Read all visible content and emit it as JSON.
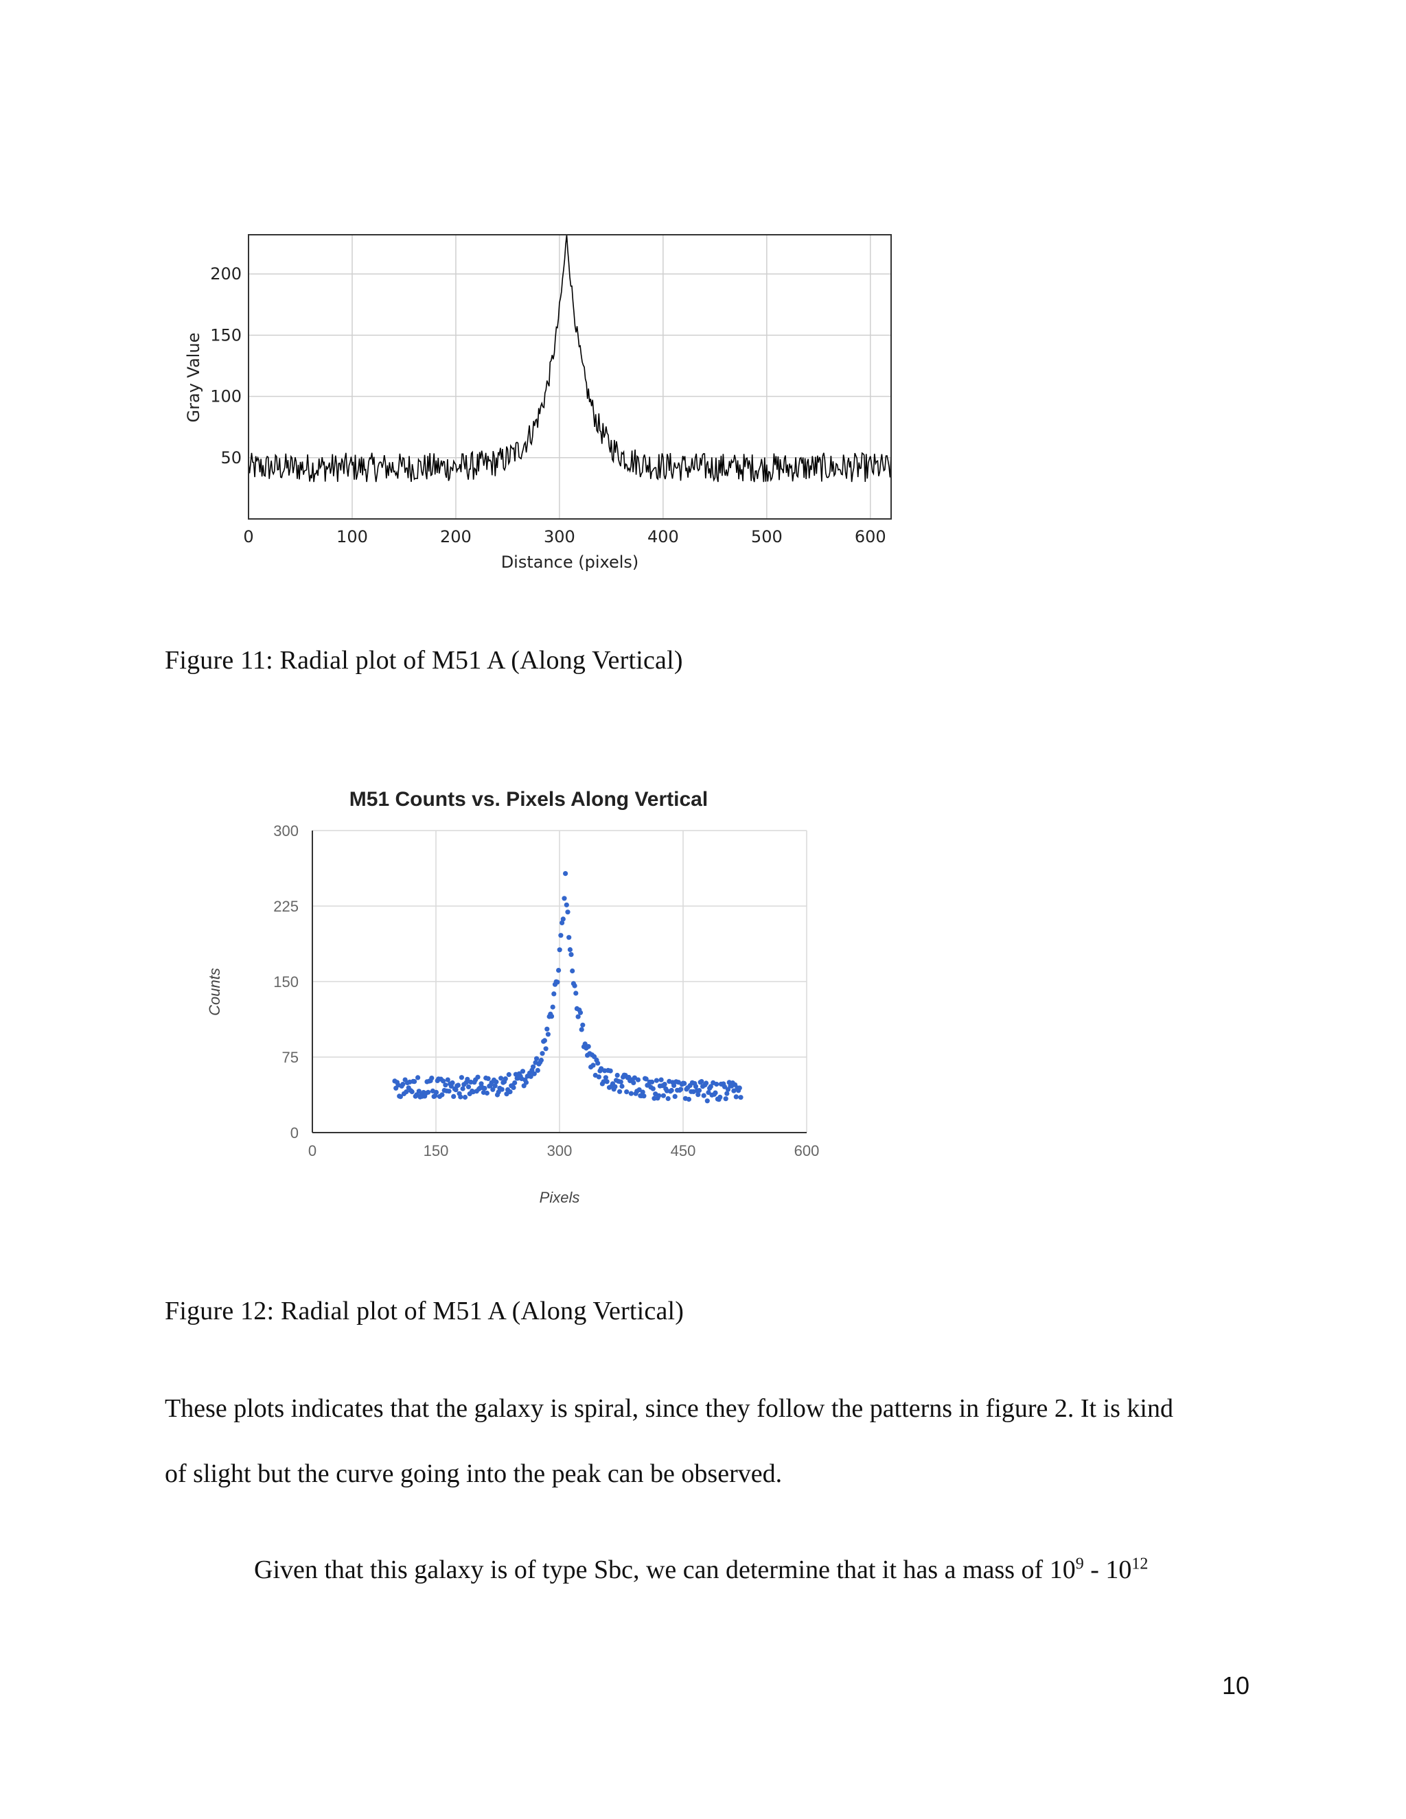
{
  "figure11": {
    "caption": "Figure  11: Radial  plot  of M51  A (Along  Vertical)",
    "chart_data": {
      "type": "line",
      "title": "",
      "xlabel": "Distance (pixels)",
      "ylabel": "Gray Value",
      "xlim": [
        0,
        620
      ],
      "ylim": [
        0,
        232
      ],
      "xticks": [
        0,
        100,
        200,
        300,
        400,
        500,
        600
      ],
      "yticks": [
        50,
        100,
        150,
        200
      ],
      "grid": true,
      "legend": "none",
      "series_color": "#000000",
      "peak_x": 307,
      "peak_y": 232,
      "baseline_y": 42,
      "noise_amplitude": 12
    }
  },
  "figure12": {
    "caption": "Figure  12: Radial  plot  of M51  A (Along  Vertical)",
    "chart_data": {
      "type": "scatter",
      "title": "M51 Counts vs. Pixels Along Vertical",
      "xlabel": "Pixels",
      "ylabel": "Counts",
      "xlim": [
        0,
        600
      ],
      "ylim": [
        0,
        300
      ],
      "xticks": [
        0,
        150,
        300,
        450,
        600
      ],
      "yticks": [
        0,
        75,
        150,
        225,
        300
      ],
      "grid": true,
      "legend": "none",
      "point_color": "#3366cc",
      "x_start": 100,
      "x_end": 520,
      "peak_x": 307,
      "peak_y": 250,
      "baseline_y": 45,
      "noise_amplitude": 10
    }
  },
  "paragraph1": {
    "lines": [
      "These  plots  indicates  that  the  galaxy  is  spiral,  since  they  follow  the  patterns  in  figure  2. It  is  kind",
      "of slight  but  the  curve  going  into  the  peak  can be observed."
    ]
  },
  "paragraph2": {
    "text": "Given  that  this  galaxy  is  of type  Sbc, we can determine  that  it  has  a mass  of 10",
    "exp1": "9",
    "mid": " - 10",
    "exp2": "12"
  },
  "page_number": "10"
}
